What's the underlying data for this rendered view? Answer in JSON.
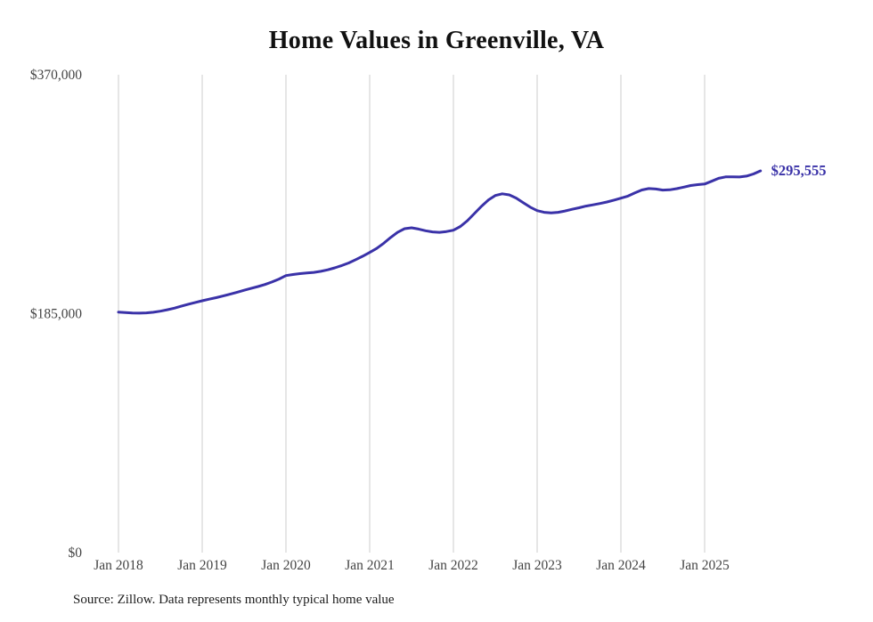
{
  "chart_data": {
    "type": "line",
    "title": "Home Values in Greenville, VA",
    "source": "Source: Zillow. Data represents monthly typical home value",
    "end_label": "$295,555",
    "last_value": 295555,
    "ylim": [
      0,
      370000
    ],
    "grid": "vertical-only",
    "legend": "none",
    "colors": {
      "line": "#3a32a8",
      "grid": "#cccccc",
      "axis_text": "#444444"
    },
    "yticks": [
      {
        "value": 0,
        "label": "$0"
      },
      {
        "value": 185000,
        "label": "$185,000"
      },
      {
        "value": 370000,
        "label": "$370,000"
      }
    ],
    "xticks": [
      {
        "month_index": 0,
        "label": "Jan 2018"
      },
      {
        "month_index": 12,
        "label": "Jan 2019"
      },
      {
        "month_index": 24,
        "label": "Jan 2020"
      },
      {
        "month_index": 36,
        "label": "Jan 2021"
      },
      {
        "month_index": 48,
        "label": "Jan 2022"
      },
      {
        "month_index": 60,
        "label": "Jan 2023"
      },
      {
        "month_index": 72,
        "label": "Jan 2024"
      },
      {
        "month_index": 84,
        "label": "Jan 2025"
      }
    ],
    "x": [
      "2018-01",
      "2018-02",
      "2018-03",
      "2018-04",
      "2018-05",
      "2018-06",
      "2018-07",
      "2018-08",
      "2018-09",
      "2018-10",
      "2018-11",
      "2018-12",
      "2019-01",
      "2019-02",
      "2019-03",
      "2019-04",
      "2019-05",
      "2019-06",
      "2019-07",
      "2019-08",
      "2019-09",
      "2019-10",
      "2019-11",
      "2019-12",
      "2020-01",
      "2020-02",
      "2020-03",
      "2020-04",
      "2020-05",
      "2020-06",
      "2020-07",
      "2020-08",
      "2020-09",
      "2020-10",
      "2020-11",
      "2020-12",
      "2021-01",
      "2021-02",
      "2021-03",
      "2021-04",
      "2021-05",
      "2021-06",
      "2021-07",
      "2021-08",
      "2021-09",
      "2021-10",
      "2021-11",
      "2021-12",
      "2022-01",
      "2022-02",
      "2022-03",
      "2022-04",
      "2022-05",
      "2022-06",
      "2022-07",
      "2022-08",
      "2022-09",
      "2022-10",
      "2022-11",
      "2022-12",
      "2023-01",
      "2023-02",
      "2023-03",
      "2023-04",
      "2023-05",
      "2023-06",
      "2023-07",
      "2023-08",
      "2023-09",
      "2023-10",
      "2023-11",
      "2023-12",
      "2024-01",
      "2024-02",
      "2024-03",
      "2024-04",
      "2024-05",
      "2024-06",
      "2024-07",
      "2024-08",
      "2024-09",
      "2024-10",
      "2024-11",
      "2024-12",
      "2025-01",
      "2025-02",
      "2025-03",
      "2025-04",
      "2025-05",
      "2025-06",
      "2025-07",
      "2025-08",
      "2025-09"
    ],
    "values": [
      186200,
      185800,
      185500,
      185400,
      185600,
      186100,
      186900,
      188000,
      189300,
      190800,
      192300,
      193700,
      195000,
      196200,
      197400,
      198700,
      200100,
      201600,
      203100,
      204600,
      206000,
      207600,
      209500,
      211800,
      214500,
      215300,
      216000,
      216500,
      217000,
      217800,
      219000,
      220500,
      222300,
      224300,
      226800,
      229500,
      232400,
      235500,
      239500,
      244000,
      248000,
      250800,
      251500,
      250500,
      249200,
      248300,
      248000,
      248600,
      249600,
      252500,
      257000,
      262500,
      268000,
      273000,
      276500,
      277800,
      277000,
      274500,
      271000,
      267500,
      264800,
      263500,
      263000,
      263500,
      264500,
      265800,
      267000,
      268300,
      269300,
      270300,
      271500,
      272900,
      274400,
      276000,
      278500,
      280800,
      281900,
      281500,
      280700,
      280900,
      281800,
      283000,
      284200,
      284900,
      285400,
      287500,
      289800,
      290900,
      291000,
      290800,
      291500,
      293200,
      295555
    ]
  }
}
